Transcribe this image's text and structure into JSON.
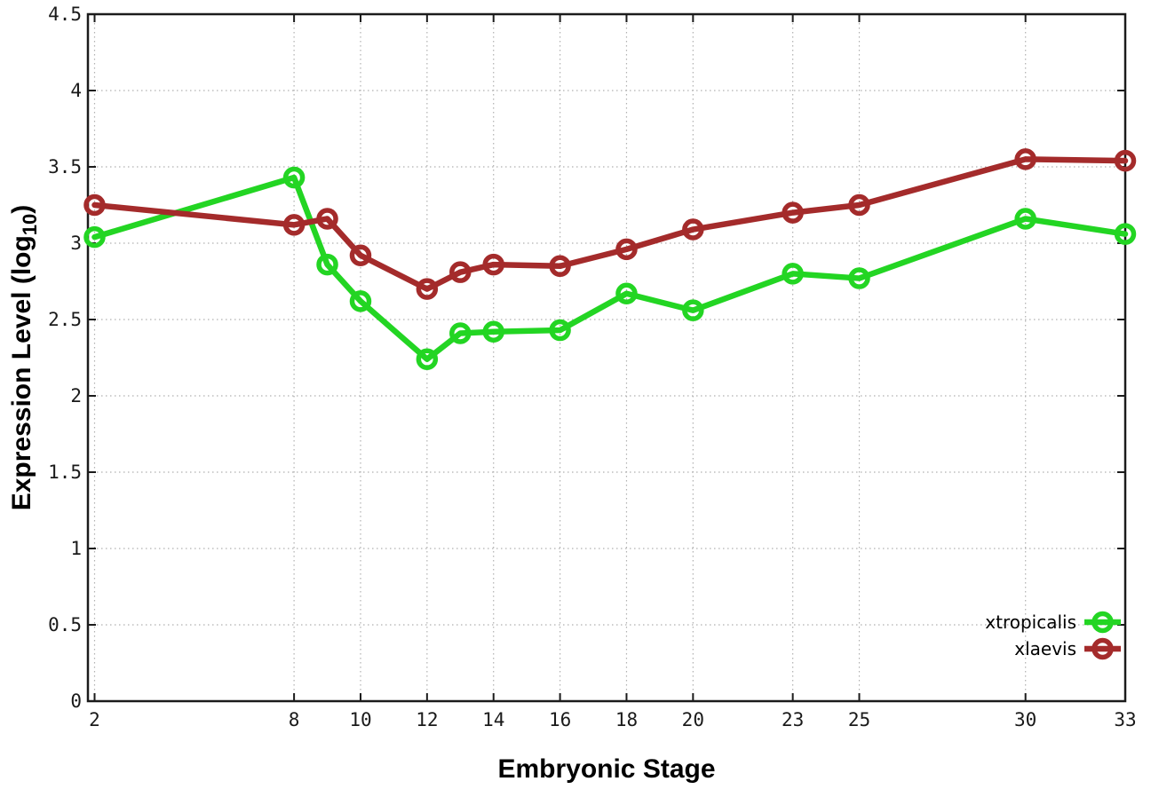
{
  "chart_data": {
    "type": "line",
    "title": "",
    "xlabel": "Embryonic Stage",
    "ylabel_main": "Expression Level (log",
    "ylabel_sub": "10",
    "ylabel_end": ")",
    "x": [
      2,
      8,
      9,
      10,
      12,
      13,
      14,
      16,
      18,
      20,
      23,
      25,
      30,
      33
    ],
    "series": [
      {
        "name": "xtropicalis",
        "color": "#23d523",
        "values": [
          3.04,
          3.43,
          2.86,
          2.62,
          2.24,
          2.41,
          2.42,
          2.43,
          2.67,
          2.56,
          2.8,
          2.77,
          3.16,
          3.06
        ]
      },
      {
        "name": "xlaevis",
        "color": "#a42b2b",
        "values": [
          3.25,
          3.12,
          3.16,
          2.92,
          2.7,
          2.81,
          2.86,
          2.85,
          2.96,
          3.09,
          3.2,
          3.25,
          3.55,
          3.54
        ]
      }
    ],
    "xlim": [
      1.8,
      33
    ],
    "ylim": [
      0,
      4.5
    ],
    "x_ticks": [
      2,
      8,
      10,
      12,
      14,
      16,
      18,
      20,
      23,
      25,
      30,
      33
    ],
    "x_tick_labels": [
      "2",
      "8",
      "10",
      "12",
      "14",
      "16",
      "18",
      "20",
      "23",
      "25",
      "30",
      "33"
    ],
    "y_ticks": [
      0,
      0.5,
      1,
      1.5,
      2,
      2.5,
      3,
      3.5,
      4,
      4.5
    ],
    "y_tick_labels": [
      "0",
      "0.5",
      "1",
      "1.5",
      "2",
      "2.5",
      "3",
      "3.5",
      "4",
      "4.5"
    ],
    "grid": "dotted",
    "legend_position": "bottom-right",
    "colors": {
      "background": "#ffffff",
      "border": "#1b1b1b",
      "grid": "#b0b0b0",
      "tick": "#1b1b1b",
      "tick_label": "#1a1a1a",
      "title": "#000000"
    }
  }
}
